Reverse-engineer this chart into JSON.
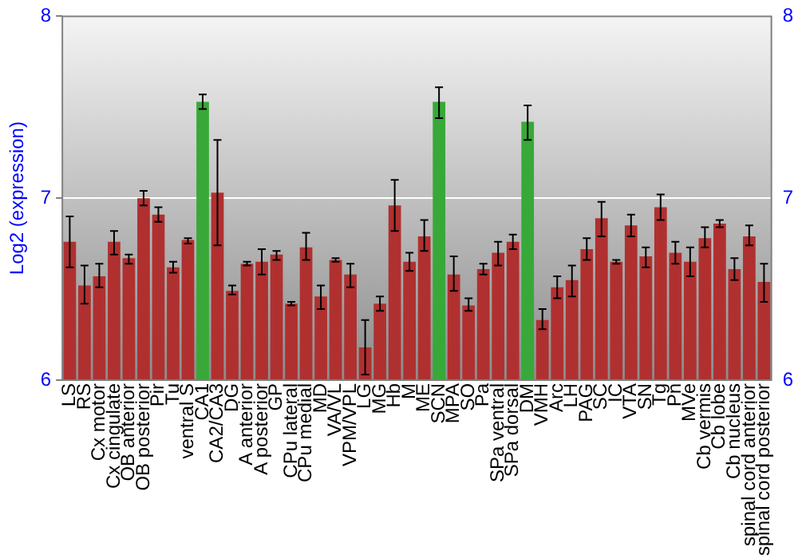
{
  "chart_data": {
    "type": "bar",
    "ylabel": "Log2 (expression)",
    "categories": [
      "LS",
      "RS",
      "Cx motor",
      "Cx cingulate",
      "OB anterior",
      "OB posterior",
      "Pir",
      "Tu",
      "ventral S",
      "CA1",
      "CA2/CA3",
      "DG",
      "A anterior",
      "A posterior",
      "GP",
      "CPu lateral",
      "CPu medial",
      "MD",
      "VA/VL",
      "VPM/VPL",
      "LG",
      "MG",
      "Hb",
      "M",
      "ME",
      "SCN",
      "MPA",
      "SO",
      "Pa",
      "SPa ventral",
      "SPa dorsal",
      "DM",
      "VMH",
      "Arc",
      "LH",
      "PAG",
      "SC",
      "IC",
      "VTA",
      "SN",
      "Tg",
      "Pn",
      "MVe",
      "Cb vermis",
      "Cb lobe",
      "Cb nucleus",
      "spinal cord anterior",
      "spinal cord posterior"
    ],
    "values": [
      6.76,
      6.52,
      6.57,
      6.76,
      6.67,
      7.0,
      6.91,
      6.62,
      6.77,
      7.53,
      7.03,
      6.49,
      6.64,
      6.65,
      6.69,
      6.42,
      6.73,
      6.46,
      6.66,
      6.58,
      6.18,
      6.42,
      6.96,
      6.65,
      6.79,
      7.53,
      6.58,
      6.41,
      6.61,
      6.7,
      6.76,
      7.42,
      6.33,
      6.51,
      6.55,
      6.72,
      6.89,
      6.65,
      6.85,
      6.68,
      6.95,
      6.7,
      6.65,
      6.78,
      6.86,
      6.61,
      6.79,
      6.54
    ],
    "errors": [
      [
        6.62,
        6.9
      ],
      [
        6.42,
        6.63
      ],
      [
        6.51,
        6.64
      ],
      [
        6.69,
        6.82
      ],
      [
        6.64,
        6.69
      ],
      [
        6.96,
        7.04
      ],
      [
        6.87,
        6.95
      ],
      [
        6.59,
        6.65
      ],
      [
        6.75,
        6.78
      ],
      [
        7.49,
        7.57
      ],
      [
        6.74,
        7.32
      ],
      [
        6.47,
        6.52
      ],
      [
        6.63,
        6.65
      ],
      [
        6.58,
        6.72
      ],
      [
        6.66,
        6.71
      ],
      [
        6.41,
        6.43
      ],
      [
        6.66,
        6.81
      ],
      [
        6.39,
        6.52
      ],
      [
        6.65,
        6.67
      ],
      [
        6.51,
        6.64
      ],
      [
        6.03,
        6.33
      ],
      [
        6.38,
        6.46
      ],
      [
        6.82,
        7.1
      ],
      [
        6.6,
        6.7
      ],
      [
        6.71,
        6.88
      ],
      [
        7.44,
        7.61
      ],
      [
        6.49,
        6.68
      ],
      [
        6.38,
        6.45
      ],
      [
        6.58,
        6.64
      ],
      [
        6.63,
        6.76
      ],
      [
        6.72,
        6.8
      ],
      [
        7.32,
        7.51
      ],
      [
        6.28,
        6.39
      ],
      [
        6.45,
        6.57
      ],
      [
        6.46,
        6.63
      ],
      [
        6.66,
        6.78
      ],
      [
        6.79,
        6.98
      ],
      [
        6.64,
        6.66
      ],
      [
        6.79,
        6.91
      ],
      [
        6.62,
        6.73
      ],
      [
        6.88,
        7.02
      ],
      [
        6.64,
        6.76
      ],
      [
        6.57,
        6.73
      ],
      [
        6.73,
        6.84
      ],
      [
        6.84,
        6.88
      ],
      [
        6.55,
        6.67
      ],
      [
        6.74,
        6.85
      ],
      [
        6.43,
        6.64
      ]
    ],
    "colors": [
      "#b03030",
      "#b03030",
      "#b03030",
      "#b03030",
      "#b03030",
      "#b03030",
      "#b03030",
      "#b03030",
      "#b03030",
      "#38a838",
      "#b03030",
      "#b03030",
      "#b03030",
      "#b03030",
      "#b03030",
      "#b03030",
      "#b03030",
      "#b03030",
      "#b03030",
      "#b03030",
      "#b03030",
      "#b03030",
      "#b03030",
      "#b03030",
      "#b03030",
      "#38a838",
      "#b03030",
      "#b03030",
      "#b03030",
      "#b03030",
      "#b03030",
      "#38a838",
      "#b03030",
      "#b03030",
      "#b03030",
      "#b03030",
      "#b03030",
      "#b03030",
      "#b03030",
      "#b03030",
      "#b03030",
      "#b03030",
      "#b03030",
      "#b03030",
      "#b03030",
      "#b03030",
      "#b03030",
      "#b03030"
    ],
    "ylim": [
      6,
      8
    ],
    "yticks": [
      6,
      7,
      8
    ],
    "y2lim": [
      6,
      8
    ],
    "y2ticks": [
      6,
      7,
      8
    ],
    "grid": "y",
    "legend": false
  }
}
